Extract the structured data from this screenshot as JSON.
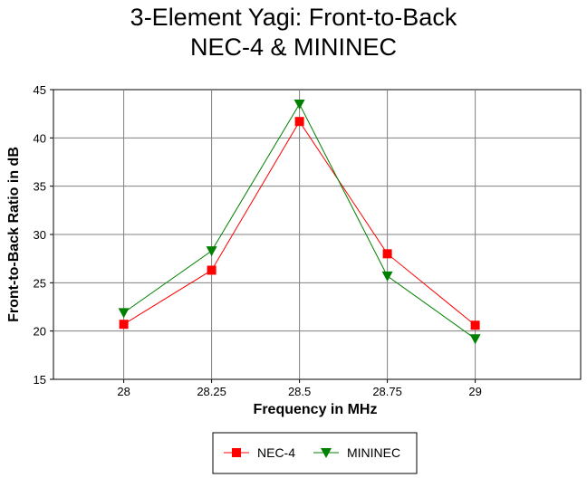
{
  "chart_data": {
    "type": "line",
    "title": [
      "3-Element Yagi:  Front-to-Back",
      "NEC-4 & MININEC"
    ],
    "xlabel": "Frequency in MHz",
    "ylabel": "Front-to-Back Ratio in dB",
    "x": [
      28,
      28.25,
      28.5,
      28.75,
      29
    ],
    "x_tick_labels": [
      "28",
      "28.25",
      "28.5",
      "28.75",
      "29"
    ],
    "xlim": [
      27.8,
      29.3
    ],
    "ylim": [
      15,
      45
    ],
    "y_ticks": [
      15,
      20,
      25,
      30,
      35,
      40,
      45
    ],
    "grid": true,
    "legend_position": "bottom-center",
    "series": [
      {
        "name": "NEC-4",
        "color": "#ff0000",
        "line_color": "#ff0000",
        "marker": "square",
        "values": [
          20.7,
          26.3,
          41.7,
          28.0,
          20.6
        ]
      },
      {
        "name": "MININEC",
        "color": "#008000",
        "line_color": "#008000",
        "marker": "triangle-down",
        "values": [
          21.9,
          28.3,
          43.5,
          25.7,
          19.2
        ]
      }
    ]
  }
}
